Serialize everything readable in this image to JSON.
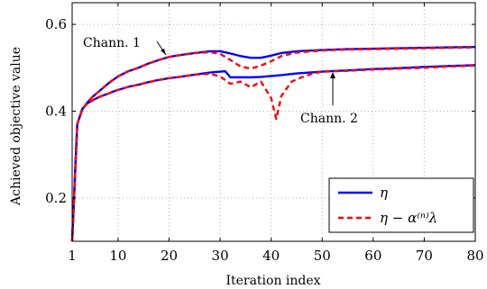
{
  "chart_data": {
    "type": "line",
    "title": "",
    "xlabel": "Iteration index",
    "ylabel": "Achieved objective value",
    "xlim": [
      1,
      80
    ],
    "ylim": [
      0.1,
      0.65
    ],
    "grid": true,
    "legend_position": "bottom-right",
    "x_ticks": [
      1,
      10,
      20,
      30,
      40,
      50,
      60,
      70,
      80
    ],
    "y_ticks": [
      0.2,
      0.4,
      0.6
    ],
    "x_tick_labels": [
      "1",
      "10",
      "20",
      "30",
      "40",
      "50",
      "60",
      "70",
      "80"
    ],
    "y_tick_labels": [
      "0.2",
      "0.4",
      "0.6"
    ],
    "legend": [
      {
        "label": "η",
        "series": "eta",
        "color": "#0000ff",
        "dashed": false
      },
      {
        "label": "η − α⁽ⁿ⁾λ",
        "series": "bound",
        "color": "#ff0000",
        "dashed": true
      }
    ],
    "annotations": [
      {
        "text": "Chann. 1",
        "points_to": [
          20,
          0.527
        ]
      },
      {
        "text": "Chann. 2",
        "points_to": [
          52,
          0.492
        ]
      }
    ],
    "series": [
      {
        "key": "eta",
        "channel": "Chann. 1",
        "color": "#0000ff",
        "dashed": false,
        "x": [
          1,
          2,
          3,
          4,
          5,
          6,
          7,
          8,
          9,
          10,
          12,
          14,
          16,
          18,
          20,
          22,
          25,
          28,
          30,
          32,
          34,
          36,
          38,
          40,
          42,
          45,
          50,
          55,
          60,
          65,
          70,
          75,
          80
        ],
        "y": [
          0.1,
          0.37,
          0.405,
          0.42,
          0.433,
          0.443,
          0.453,
          0.463,
          0.472,
          0.48,
          0.492,
          0.5,
          0.51,
          0.518,
          0.525,
          0.529,
          0.534,
          0.538,
          0.538,
          0.533,
          0.527,
          0.523,
          0.523,
          0.528,
          0.534,
          0.538,
          0.541,
          0.543,
          0.544,
          0.545,
          0.546,
          0.547,
          0.548
        ]
      },
      {
        "key": "bound",
        "channel": "Chann. 1",
        "color": "#ff0000",
        "dashed": true,
        "x": [
          1,
          2,
          3,
          4,
          5,
          6,
          7,
          8,
          9,
          10,
          12,
          14,
          16,
          18,
          20,
          22,
          25,
          28,
          30,
          32,
          34,
          36,
          38,
          40,
          42,
          45,
          50,
          55,
          60,
          65,
          70,
          75,
          80
        ],
        "y": [
          0.1,
          0.37,
          0.405,
          0.42,
          0.433,
          0.443,
          0.453,
          0.463,
          0.472,
          0.48,
          0.492,
          0.5,
          0.51,
          0.518,
          0.525,
          0.529,
          0.534,
          0.536,
          0.532,
          0.518,
          0.503,
          0.498,
          0.505,
          0.515,
          0.527,
          0.535,
          0.54,
          0.542,
          0.543,
          0.544,
          0.545,
          0.546,
          0.547
        ]
      },
      {
        "key": "eta",
        "channel": "Chann. 2",
        "color": "#0000ff",
        "dashed": false,
        "x": [
          1,
          2,
          3,
          4,
          5,
          6,
          7,
          8,
          9,
          10,
          12,
          14,
          16,
          18,
          20,
          22,
          25,
          28,
          30,
          31,
          32,
          34,
          36,
          38,
          40,
          42,
          45,
          50,
          55,
          60,
          65,
          70,
          75,
          80
        ],
        "y": [
          0.1,
          0.37,
          0.405,
          0.418,
          0.425,
          0.431,
          0.436,
          0.44,
          0.445,
          0.449,
          0.456,
          0.461,
          0.467,
          0.472,
          0.476,
          0.479,
          0.484,
          0.489,
          0.491,
          0.492,
          0.478,
          0.478,
          0.478,
          0.479,
          0.481,
          0.483,
          0.487,
          0.491,
          0.494,
          0.497,
          0.499,
          0.502,
          0.504,
          0.506
        ]
      },
      {
        "key": "bound",
        "channel": "Chann. 2",
        "color": "#ff0000",
        "dashed": true,
        "x": [
          1,
          2,
          3,
          4,
          5,
          6,
          7,
          8,
          9,
          10,
          12,
          14,
          16,
          18,
          20,
          22,
          25,
          28,
          30,
          32,
          34,
          36,
          38,
          40,
          41,
          42,
          44,
          46,
          48,
          50,
          55,
          60,
          65,
          70,
          75,
          80
        ],
        "y": [
          0.1,
          0.37,
          0.405,
          0.418,
          0.425,
          0.431,
          0.436,
          0.44,
          0.445,
          0.449,
          0.456,
          0.461,
          0.467,
          0.472,
          0.476,
          0.479,
          0.484,
          0.486,
          0.48,
          0.463,
          0.468,
          0.455,
          0.468,
          0.43,
          0.382,
          0.435,
          0.468,
          0.478,
          0.486,
          0.491,
          0.493,
          0.496,
          0.498,
          0.5,
          0.503,
          0.505
        ]
      }
    ]
  }
}
